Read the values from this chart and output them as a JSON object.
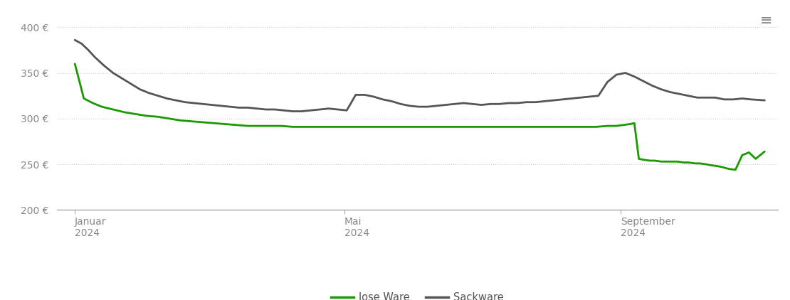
{
  "background_color": "#ffffff",
  "ylim": [
    200,
    415
  ],
  "yticks": [
    200,
    250,
    300,
    350,
    400
  ],
  "ytick_labels": [
    "200 €",
    "250 €",
    "300 €",
    "350 €",
    "400 €"
  ],
  "xtick_labels": [
    "Januar\n2024",
    "Mai\n2024",
    "September\n2024"
  ],
  "xtick_positions": [
    0,
    120,
    243
  ],
  "grid_color": "#cccccc",
  "lose_ware_color": "#1a9900",
  "sackware_color": "#555555",
  "legend_labels": [
    "lose Ware",
    "Sackware"
  ],
  "xlim": [
    -8,
    313
  ],
  "lose_ware_x": [
    0,
    4,
    8,
    12,
    17,
    22,
    27,
    32,
    37,
    42,
    47,
    52,
    57,
    62,
    67,
    72,
    77,
    82,
    87,
    92,
    97,
    102,
    107,
    112,
    117,
    122,
    127,
    132,
    137,
    142,
    147,
    152,
    157,
    162,
    167,
    172,
    177,
    182,
    187,
    192,
    197,
    202,
    207,
    212,
    217,
    222,
    227,
    232,
    237,
    241,
    244,
    247,
    249,
    251,
    253,
    256,
    258,
    261,
    263,
    266,
    268,
    271,
    273,
    276,
    278,
    281,
    283,
    286,
    288,
    291,
    294,
    297,
    300,
    303,
    307
  ],
  "lose_ware_y": [
    360,
    322,
    317,
    313,
    310,
    307,
    305,
    303,
    302,
    300,
    298,
    297,
    296,
    295,
    294,
    293,
    292,
    292,
    292,
    292,
    291,
    291,
    291,
    291,
    291,
    291,
    291,
    291,
    291,
    291,
    291,
    291,
    291,
    291,
    291,
    291,
    291,
    291,
    291,
    291,
    291,
    291,
    291,
    291,
    291,
    291,
    291,
    291,
    292,
    292,
    293,
    294,
    295,
    256,
    255,
    254,
    254,
    253,
    253,
    253,
    253,
    252,
    252,
    251,
    251,
    250,
    249,
    248,
    247,
    245,
    244,
    260,
    263,
    256,
    264
  ],
  "sackware_x": [
    0,
    3,
    6,
    9,
    13,
    17,
    21,
    25,
    29,
    33,
    37,
    41,
    45,
    49,
    53,
    57,
    61,
    65,
    69,
    73,
    77,
    81,
    85,
    89,
    93,
    97,
    101,
    105,
    109,
    113,
    117,
    121,
    125,
    129,
    133,
    137,
    141,
    145,
    149,
    153,
    157,
    161,
    165,
    169,
    173,
    177,
    181,
    185,
    189,
    193,
    197,
    201,
    205,
    209,
    213,
    217,
    221,
    225,
    229,
    233,
    237,
    241,
    245,
    249,
    253,
    257,
    261,
    265,
    269,
    273,
    277,
    281,
    285,
    289,
    293,
    297,
    301,
    307
  ],
  "sackware_y": [
    386,
    382,
    375,
    367,
    358,
    350,
    344,
    338,
    332,
    328,
    325,
    322,
    320,
    318,
    317,
    316,
    315,
    314,
    313,
    312,
    312,
    311,
    310,
    310,
    309,
    308,
    308,
    309,
    310,
    311,
    310,
    309,
    326,
    326,
    324,
    321,
    319,
    316,
    314,
    313,
    313,
    314,
    315,
    316,
    317,
    316,
    315,
    316,
    316,
    317,
    317,
    318,
    318,
    319,
    320,
    321,
    322,
    323,
    324,
    325,
    340,
    348,
    350,
    346,
    341,
    336,
    332,
    329,
    327,
    325,
    323,
    323,
    323,
    321,
    321,
    322,
    321,
    320
  ]
}
